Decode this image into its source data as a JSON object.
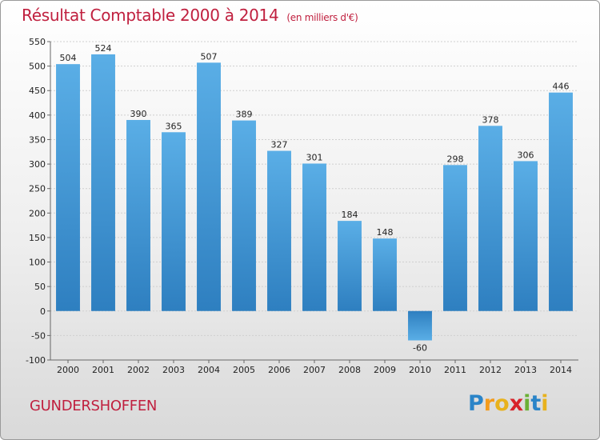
{
  "title": "Résultat Comptable 2000 à 2014",
  "unit": "(en milliers d'€)",
  "city": "GUNDERSHOFFEN",
  "logo": {
    "letters": [
      "P",
      "r",
      "o",
      "x",
      "i",
      "t",
      "i"
    ],
    "colors": [
      "#2a84c8",
      "#f39b1c",
      "#e8b21d",
      "#d8232a",
      "#6bb035",
      "#2a84c8",
      "#e8b21d"
    ]
  },
  "colors": {
    "bar_top": "#5aaee6",
    "bar_bottom": "#2e7fc0",
    "title": "#c0203f"
  },
  "chart_data": {
    "type": "bar",
    "categories": [
      "2000",
      "2001",
      "2002",
      "2003",
      "2004",
      "2005",
      "2006",
      "2007",
      "2008",
      "2009",
      "2010",
      "2011",
      "2012",
      "2013",
      "2014"
    ],
    "values": [
      504,
      524,
      390,
      365,
      507,
      389,
      327,
      301,
      184,
      148,
      -60,
      298,
      378,
      306,
      446
    ],
    "title": "Résultat Comptable 2000 à 2014",
    "ylabel": "",
    "xlabel": "",
    "ylim": [
      -100,
      550
    ],
    "yticks": [
      -100,
      -50,
      0,
      50,
      100,
      150,
      200,
      250,
      300,
      350,
      400,
      450,
      500,
      550
    ],
    "grid": true
  }
}
